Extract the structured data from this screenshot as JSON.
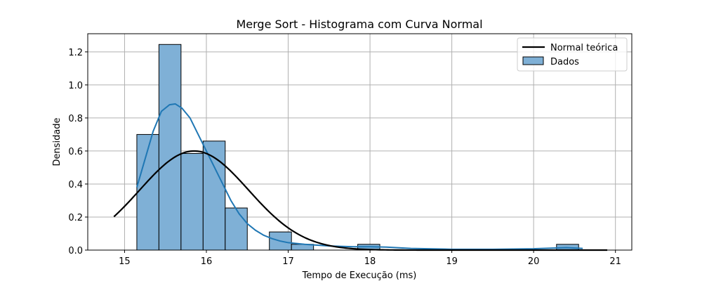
{
  "chart_data": {
    "type": "bar",
    "title": "Merge Sort - Histograma com Curva Normal",
    "xlabel": "Tempo de Execução (ms)",
    "ylabel": "Densidade",
    "xlim": [
      14.55,
      21.2
    ],
    "ylim": [
      0.0,
      1.31
    ],
    "xticks": [
      15,
      16,
      17,
      18,
      19,
      20,
      21
    ],
    "yticks": [
      0.0,
      0.2,
      0.4,
      0.6,
      0.8,
      1.0,
      1.2
    ],
    "xtick_labels": [
      "15",
      "16",
      "17",
      "18",
      "19",
      "20",
      "21"
    ],
    "ytick_labels": [
      "0.0",
      "0.2",
      "0.4",
      "0.6",
      "0.8",
      "1.0",
      "1.2"
    ],
    "grid": true,
    "legend_position": "top-right",
    "histogram": {
      "name": "Dados",
      "color": "#7fb0d6",
      "edge_color": "#000000",
      "bin_edges": [
        15.15,
        15.42,
        15.69,
        15.96,
        16.23,
        16.5,
        16.77,
        17.04,
        17.31,
        17.58,
        17.85,
        18.12,
        18.39,
        18.66,
        18.93,
        19.2,
        19.47,
        19.74,
        20.01,
        20.28,
        20.55,
        20.82
      ],
      "values": [
        0.7,
        1.245,
        0.585,
        0.66,
        0.255,
        0.0,
        0.11,
        0.035,
        0.0,
        0.0,
        0.035,
        0.0,
        0.0,
        0.0,
        0.0,
        0.0,
        0.0,
        0.0,
        0.0,
        0.035,
        0.0
      ]
    },
    "kde": {
      "color": "#1f77b4",
      "x": [
        15.15,
        15.25,
        15.35,
        15.45,
        15.55,
        15.62,
        15.7,
        15.8,
        15.9,
        16.0,
        16.1,
        16.2,
        16.3,
        16.4,
        16.5,
        16.6,
        16.7,
        16.8,
        16.9,
        17.0,
        17.2,
        17.5,
        17.8,
        18.0,
        18.2,
        18.5,
        19.0,
        19.5,
        20.0,
        20.4,
        20.6
      ],
      "y": [
        0.38,
        0.55,
        0.72,
        0.84,
        0.88,
        0.885,
        0.86,
        0.8,
        0.7,
        0.6,
        0.5,
        0.4,
        0.3,
        0.22,
        0.16,
        0.12,
        0.09,
        0.07,
        0.055,
        0.045,
        0.035,
        0.025,
        0.02,
        0.02,
        0.018,
        0.01,
        0.005,
        0.005,
        0.008,
        0.015,
        0.01
      ]
    },
    "series": [
      {
        "name": "Normal teórica",
        "type": "line",
        "color": "#000000",
        "mean": 15.85,
        "std": 0.665,
        "x_range": [
          14.87,
          20.9
        ]
      }
    ],
    "legend": [
      {
        "label": "Normal teórica",
        "kind": "line",
        "color": "#000000"
      },
      {
        "label": "Dados",
        "kind": "patch",
        "color": "#7fb0d6"
      }
    ]
  }
}
